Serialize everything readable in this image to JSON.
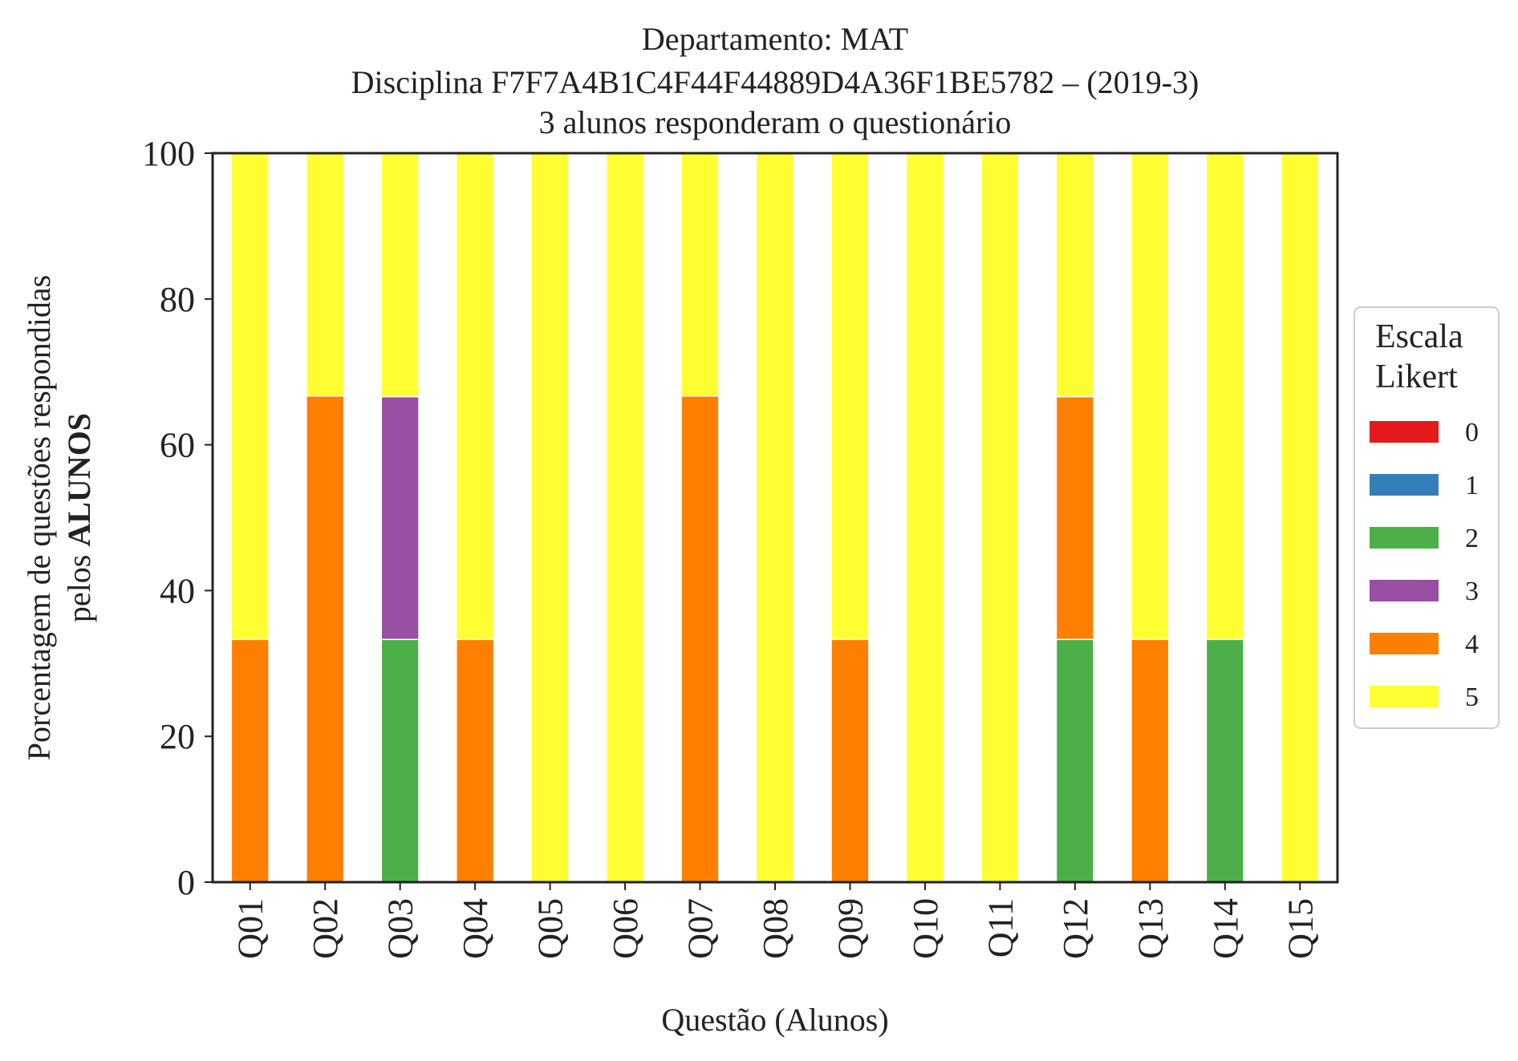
{
  "chart_data": {
    "type": "bar",
    "stacked": true,
    "title_lines": [
      "Departamento: MAT",
      "Disciplina F7F7A4B1C4F44F44889D4A36F1BE5782 – (2019-3)",
      "3 alunos responderam o questionário"
    ],
    "xlabel": "Questão (Alunos)",
    "ylabel_line1": "Porcentagem de questões respondidas",
    "ylabel_line2_prefix": "pelos ",
    "ylabel_line2_bold": "ALUNOS",
    "ylim": [
      0,
      100
    ],
    "yticks": [
      0,
      20,
      40,
      60,
      80,
      100
    ],
    "grid": false,
    "legend": {
      "title_lines": [
        "Escala",
        "Likert"
      ],
      "placement": "right"
    },
    "categories": [
      "Q01",
      "Q02",
      "Q03",
      "Q04",
      "Q05",
      "Q06",
      "Q07",
      "Q08",
      "Q09",
      "Q10",
      "Q11",
      "Q12",
      "Q13",
      "Q14",
      "Q15"
    ],
    "series": [
      {
        "name": "0",
        "color": "#e41a1c",
        "values": [
          0,
          0,
          0,
          0,
          0,
          0,
          0,
          0,
          0,
          0,
          0,
          0,
          0,
          0,
          0
        ]
      },
      {
        "name": "1",
        "color": "#377eb8",
        "values": [
          0,
          0,
          0,
          0,
          0,
          0,
          0,
          0,
          0,
          0,
          0,
          0,
          0,
          0,
          0
        ]
      },
      {
        "name": "2",
        "color": "#4daf4a",
        "values": [
          0,
          0,
          33.3,
          0,
          0,
          0,
          0,
          0,
          0,
          0,
          0,
          33.3,
          0,
          33.3,
          0
        ]
      },
      {
        "name": "3",
        "color": "#984ea3",
        "values": [
          0,
          0,
          33.3,
          0,
          0,
          0,
          0,
          0,
          0,
          0,
          0,
          0,
          0,
          0,
          0
        ]
      },
      {
        "name": "4",
        "color": "#ff7f00",
        "values": [
          33.3,
          66.7,
          0,
          33.3,
          0,
          0,
          66.7,
          0,
          33.3,
          0,
          0,
          33.3,
          33.3,
          0,
          0
        ]
      },
      {
        "name": "5",
        "color": "#ffff33",
        "values": [
          66.7,
          33.3,
          33.3,
          66.7,
          100,
          100,
          33.3,
          100,
          66.7,
          100,
          100,
          33.3,
          66.7,
          66.7,
          100
        ]
      }
    ]
  }
}
